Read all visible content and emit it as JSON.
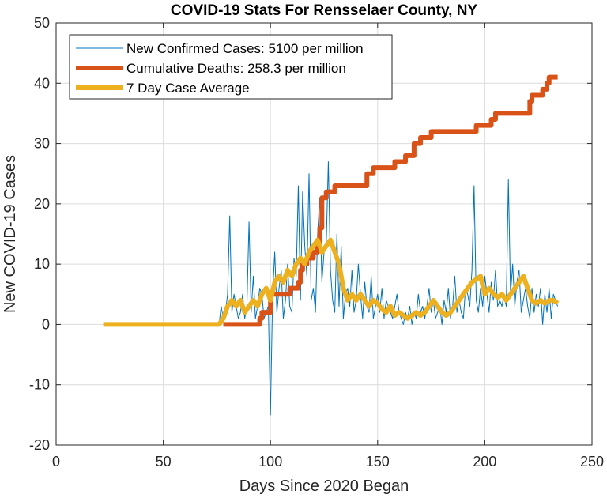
{
  "chart_data": {
    "type": "line",
    "title": "COVID-19 Stats For Rensselaer County, NY",
    "xlabel": "Days Since 2020 Began",
    "ylabel": "New COVID-19 Cases",
    "xlim": [
      0,
      250
    ],
    "ylim": [
      -20,
      50
    ],
    "xticks": [
      0,
      50,
      100,
      150,
      200,
      250
    ],
    "yticks": [
      -20,
      -10,
      0,
      10,
      20,
      30,
      40,
      50
    ],
    "grid": true,
    "legend_position": "top-left",
    "series": [
      {
        "name": "New Confirmed Cases: 5100 per million",
        "color": "#0072bd",
        "x": [
          22,
          76,
          77,
          78,
          79,
          80,
          81,
          82,
          83,
          84,
          85,
          86,
          87,
          88,
          89,
          90,
          91,
          92,
          93,
          94,
          95,
          96,
          97,
          98,
          99,
          100,
          101,
          102,
          103,
          104,
          105,
          106,
          107,
          108,
          109,
          110,
          111,
          112,
          113,
          114,
          115,
          116,
          117,
          118,
          119,
          120,
          121,
          122,
          123,
          124,
          125,
          126,
          127,
          128,
          129,
          130,
          131,
          132,
          133,
          134,
          135,
          136,
          137,
          138,
          139,
          140,
          141,
          142,
          143,
          144,
          145,
          146,
          147,
          148,
          149,
          150,
          151,
          152,
          153,
          154,
          155,
          156,
          157,
          158,
          159,
          160,
          161,
          162,
          163,
          164,
          165,
          166,
          167,
          168,
          169,
          170,
          171,
          172,
          173,
          174,
          175,
          176,
          177,
          178,
          179,
          180,
          181,
          182,
          183,
          184,
          185,
          186,
          187,
          188,
          189,
          190,
          191,
          192,
          193,
          194,
          195,
          196,
          197,
          198,
          199,
          200,
          201,
          202,
          203,
          204,
          205,
          206,
          207,
          208,
          209,
          210,
          211,
          212,
          213,
          214,
          215,
          216,
          217,
          218,
          219,
          220,
          221,
          222,
          223,
          224,
          225,
          226,
          227,
          228,
          229,
          230,
          231,
          232,
          233,
          234
        ],
        "y": [
          0,
          0,
          3,
          1,
          2,
          5,
          18,
          2,
          5,
          3,
          1,
          2,
          5,
          1,
          3,
          17,
          2,
          8,
          1,
          3,
          6,
          5,
          1,
          2,
          3,
          -15,
          5,
          12,
          2,
          6,
          9,
          1,
          4,
          10,
          3,
          2,
          11,
          8,
          23,
          4,
          22,
          13,
          8,
          25,
          4,
          6,
          2,
          15,
          21,
          7,
          12,
          13,
          27,
          9,
          4,
          2,
          15,
          3,
          13,
          1,
          5,
          6,
          3,
          9,
          2,
          4,
          10,
          5,
          1,
          7,
          3,
          2,
          8,
          1,
          3,
          5,
          2,
          6,
          1,
          4,
          3,
          2,
          1,
          3,
          5,
          2,
          1,
          0,
          2,
          1,
          3,
          0,
          2,
          1,
          5,
          2,
          3,
          1,
          3,
          6,
          2,
          4,
          1,
          2,
          3,
          0,
          4,
          2,
          6,
          1,
          3,
          8,
          2,
          4,
          2,
          1,
          6,
          5,
          3,
          9,
          23,
          4,
          2,
          6,
          3,
          8,
          5,
          2,
          7,
          4,
          9,
          3,
          4,
          3,
          5,
          3,
          24,
          5,
          10,
          3,
          7,
          9,
          2,
          4,
          6,
          3,
          1,
          6,
          2,
          5,
          3,
          6,
          0,
          5,
          2,
          6,
          1,
          5,
          4,
          3
        ]
      },
      {
        "name": "Cumulative Deaths: 258.3 per million",
        "color": "#d95319",
        "x": [
          78,
          92,
          95,
          96,
          100,
          101,
          108,
          109,
          112,
          113,
          114,
          115,
          116,
          117,
          119,
          120,
          121,
          122,
          123,
          124,
          125,
          126,
          127,
          130,
          133,
          145,
          147,
          148,
          153,
          154,
          158,
          159,
          163,
          165,
          167,
          170,
          173,
          175,
          184,
          186,
          196,
          198,
          203,
          205,
          208,
          209,
          219,
          221,
          222,
          226,
          227,
          229,
          230,
          231,
          234
        ],
        "y": [
          0,
          0,
          1,
          2,
          5,
          5,
          5,
          6,
          6,
          7,
          9,
          10,
          10,
          11,
          11,
          12,
          12,
          13,
          16,
          21,
          21,
          22,
          22,
          23,
          23,
          25,
          25,
          26,
          26,
          26,
          27,
          27,
          28,
          28,
          30,
          31,
          31,
          32,
          32,
          32,
          33,
          33,
          34,
          35,
          35,
          35,
          35,
          37,
          38,
          38,
          39,
          40,
          41,
          41,
          41
        ]
      },
      {
        "name": "7 Day Case Average",
        "color": "#edb120",
        "x": [
          22,
          76,
          78,
          80,
          82,
          84,
          86,
          88,
          90,
          92,
          94,
          96,
          98,
          100,
          102,
          104,
          106,
          108,
          110,
          112,
          114,
          116,
          118,
          120,
          122,
          124,
          126,
          128,
          130,
          132,
          134,
          136,
          138,
          140,
          142,
          144,
          146,
          148,
          150,
          152,
          154,
          156,
          158,
          160,
          162,
          164,
          166,
          168,
          170,
          172,
          174,
          176,
          178,
          180,
          182,
          184,
          186,
          188,
          190,
          192,
          194,
          196,
          198,
          200,
          202,
          204,
          206,
          208,
          210,
          212,
          214,
          216,
          218,
          220,
          222,
          224,
          226,
          228,
          230,
          232,
          234
        ],
        "y": [
          0,
          0,
          1,
          3,
          4,
          3,
          4,
          2,
          3,
          4,
          3,
          5,
          6,
          4,
          7,
          8,
          7,
          9,
          8,
          10,
          11,
          10,
          12,
          13,
          14,
          12,
          13,
          14,
          12,
          10,
          6,
          4,
          5,
          4,
          5,
          4,
          3,
          4,
          3.5,
          2.5,
          2,
          3,
          1.5,
          2,
          1.5,
          1,
          1.5,
          2,
          1.5,
          2,
          3,
          4,
          3,
          2,
          1.5,
          2,
          3,
          4,
          5,
          6,
          7,
          7.5,
          8,
          5,
          6,
          5,
          4.5,
          5,
          4,
          5,
          6,
          7,
          8,
          6,
          4,
          3.5,
          4,
          3.5,
          4,
          4,
          3.5
        ]
      }
    ]
  }
}
